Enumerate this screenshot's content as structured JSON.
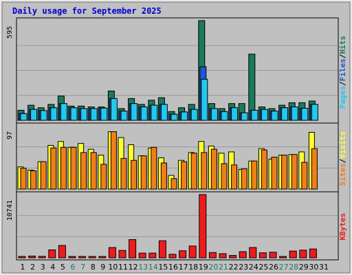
{
  "chart_data": {
    "type": "bar",
    "title": "Daily usage for September 2025",
    "categories": [
      "1",
      "2",
      "3",
      "4",
      "5",
      "6",
      "7",
      "8",
      "9",
      "10",
      "11",
      "12",
      "13",
      "14",
      "15",
      "16",
      "17",
      "18",
      "19",
      "20",
      "21",
      "22",
      "23",
      "24",
      "25",
      "26",
      "27",
      "28",
      "29",
      "30",
      "31"
    ],
    "weekend_days": [
      "6",
      "7",
      "13",
      "14",
      "20",
      "21",
      "27",
      "28"
    ],
    "panels": [
      {
        "id": "hits",
        "max_label": "595",
        "ylim": [
          0,
          595
        ],
        "series_labels": [
          "Pages",
          "Files",
          "Hits"
        ],
        "series": [
          {
            "name": "Hits",
            "color": "#1a7a5e",
            "values": [
              60,
              90,
              75,
              95,
              145,
              85,
              85,
              80,
              80,
              175,
              70,
              130,
              95,
              120,
              135,
              52,
              75,
              95,
              595,
              100,
              70,
              100,
              100,
              395,
              80,
              70,
              90,
              105,
              105,
              115,
              0
            ]
          },
          {
            "name": "Files",
            "color": "#1e56d6",
            "values": [
              40,
              65,
              58,
              75,
              100,
              75,
              70,
              70,
              73,
              130,
              55,
              100,
              80,
              90,
              95,
              36,
              50,
              65,
              320,
              70,
              52,
              75,
              45,
              60,
              65,
              55,
              75,
              80,
              72,
              95,
              0
            ]
          },
          {
            "name": "Pages",
            "color": "#22c8f0",
            "values": [
              40,
              65,
              58,
              75,
              100,
              75,
              70,
              70,
              73,
              130,
              55,
              100,
              80,
              90,
              95,
              36,
              50,
              65,
              245,
              70,
              52,
              75,
              45,
              60,
              65,
              55,
              75,
              80,
              72,
              95,
              0
            ]
          }
        ]
      },
      {
        "id": "visits",
        "max_label": "97",
        "ylim": [
          0,
          97
        ],
        "series_labels": [
          "Sites",
          "Visits"
        ],
        "series": [
          {
            "name": "Visits",
            "color": "#ffff2e",
            "values": [
              34,
              29,
              42,
              67,
              73,
              64,
              70,
              61,
              52,
              88,
              79,
              68,
              51,
              63,
              48,
              21,
              44,
              56,
              73,
              66,
              55,
              57,
              30,
              43,
              62,
              46,
              52,
              53,
              57,
              87,
              0
            ]
          },
          {
            "name": "Sites",
            "color": "#f07f17",
            "values": [
              32,
              28,
              42,
              63,
              64,
              64,
              56,
              56,
              38,
              88,
              47,
              44,
              51,
              64,
              40,
              16,
              42,
              55,
              56,
              61,
              39,
              37,
              31,
              43,
              60,
              49,
              52,
              53,
              41,
              62,
              0
            ]
          }
        ]
      },
      {
        "id": "kbytes",
        "max_label": "10741",
        "ylim": [
          0,
          10741
        ],
        "series_labels": [
          "KBytes"
        ],
        "series": [
          {
            "name": "KBytes",
            "color": "#ee1c1c",
            "values": [
              150,
              300,
              250,
              1350,
              2100,
              180,
              160,
              150,
              120,
              1750,
              1250,
              3100,
              800,
              800,
              2900,
              600,
              1200,
              2000,
              10741,
              900,
              700,
              400,
              1050,
              1750,
              850,
              950,
              180,
              1150,
              1300,
              1500,
              0
            ]
          }
        ]
      }
    ]
  },
  "colors": {
    "background": "#c0c0c0",
    "frame": "#e8e8e8",
    "title": "#0000d0",
    "weekday_label": "#000000",
    "weekend_label": "#1a7a5e",
    "separator": "#000000"
  }
}
